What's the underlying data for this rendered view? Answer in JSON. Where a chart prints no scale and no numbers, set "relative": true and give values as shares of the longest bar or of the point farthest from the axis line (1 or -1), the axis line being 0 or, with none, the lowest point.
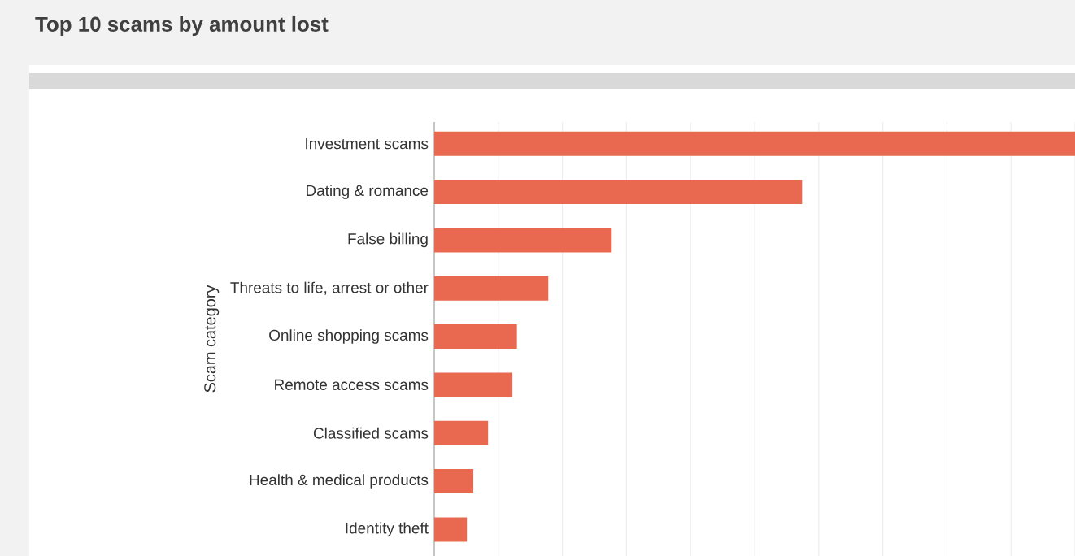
{
  "chart_data": {
    "type": "bar",
    "title": "Top 10 scams by amount lost",
    "ylabel": "Scam category",
    "orientation": "horizontal",
    "relative": true,
    "grid": "x",
    "color": "#e8694f",
    "categories": [
      "Investment scams",
      "Dating & romance",
      "False billing",
      "Threats to life, arrest or other",
      "Online shopping scams",
      "Remote access scams",
      "Classified scams",
      "Health & medical products",
      "Identity theft"
    ],
    "values": [
      1,
      0.574,
      0.277,
      0.178,
      0.129,
      0.122,
      0.084,
      0.061,
      0.051
    ]
  }
}
